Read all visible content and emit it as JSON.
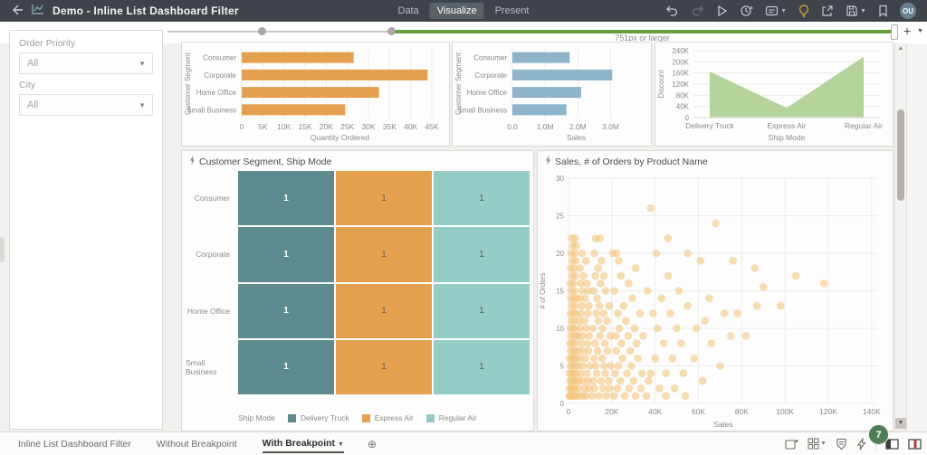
{
  "topbar": {
    "title": "Demo - Inline List Dashboard Filter",
    "tabs": [
      {
        "label": "Data",
        "active": false
      },
      {
        "label": "Visualize",
        "active": true
      },
      {
        "label": "Present",
        "active": false
      }
    ],
    "action_icon_names": [
      "undo-icon",
      "redo-icon",
      "preview-icon",
      "schedule-icon",
      "comments-icon",
      "auto-insights-icon",
      "export-icon",
      "save-icon",
      "bookmark-icon"
    ],
    "avatar_initials": "OU"
  },
  "breakpoint_bar": {
    "label": "751px or larger",
    "add_button": "+"
  },
  "filter_panel": {
    "fields": [
      {
        "label": "Order Priority",
        "value": "All"
      },
      {
        "label": "City",
        "value": "All"
      }
    ]
  },
  "chart_data": [
    {
      "type": "bar",
      "orientation": "horizontal",
      "categories": [
        "Consumer",
        "Corporate",
        "Home Office",
        "Small Business"
      ],
      "values": [
        26500,
        44000,
        32500,
        24500
      ],
      "xlabel": "Quantity Ordered",
      "ylabel": "Customer Segment",
      "xlim": [
        0,
        46500
      ],
      "xtick_values": [
        0,
        5000,
        10000,
        15000,
        20000,
        25000,
        30000,
        35000,
        40000,
        45000
      ],
      "xtick_labels": [
        "0",
        "5K",
        "10K",
        "15K",
        "20K",
        "25K",
        "30K",
        "35K",
        "40K",
        "45K"
      ],
      "grid": true,
      "color": "#e4a04f"
    },
    {
      "type": "bar",
      "orientation": "horizontal",
      "categories": [
        "Consumer",
        "Corporate",
        "Home Office",
        "Small Business"
      ],
      "values": [
        1750000,
        3050000,
        2100000,
        1650000
      ],
      "xlabel": "Sales",
      "ylabel": "Customer Segment",
      "xlim": [
        0,
        3900000
      ],
      "xtick_values": [
        0,
        1000000,
        2000000,
        3000000
      ],
      "xtick_labels": [
        "0.0",
        "1.0M",
        "2.0M",
        "3.0M"
      ],
      "grid": true,
      "color": "#8db4c9"
    },
    {
      "type": "area",
      "categories": [
        "Delivery Truck",
        "Express Air",
        "Regular Air"
      ],
      "values": [
        165000,
        35000,
        218000
      ],
      "xlabel": "Ship Mode",
      "ylabel": "Discount",
      "ylim": [
        0,
        240000
      ],
      "ytick_values": [
        0,
        40000,
        80000,
        120000,
        160000,
        200000,
        240000
      ],
      "ytick_labels": [
        "0",
        "40K",
        "80K",
        "120K",
        "160K",
        "200K",
        "240K"
      ],
      "grid": true,
      "color": "#b5d49b"
    },
    {
      "type": "heatmap",
      "title": "Customer Segment, Ship Mode",
      "rows": [
        "Consumer",
        "Corporate",
        "Home Office",
        "Small Business"
      ],
      "columns": [
        "Delivery Truck",
        "Express Air",
        "Regular Air"
      ],
      "values": [
        [
          1,
          1,
          1
        ],
        [
          1,
          1,
          1
        ],
        [
          1,
          1,
          1
        ],
        [
          1,
          1,
          1
        ]
      ],
      "column_colors": [
        "#5e8b8f",
        "#e4a04f",
        "#93cdc6"
      ],
      "legend_title": "Ship Mode",
      "legend_position": "bottom"
    },
    {
      "type": "scatter",
      "title": "Sales, # of Orders by Product Name",
      "xlabel": "Sales",
      "ylabel": "# of Orders",
      "xlim": [
        0,
        143000
      ],
      "ylim": [
        0,
        30
      ],
      "xtick_values": [
        0,
        20000,
        40000,
        60000,
        80000,
        100000,
        120000,
        140000
      ],
      "xtick_labels": [
        "0",
        "20K",
        "40K",
        "60K",
        "80K",
        "100K",
        "120K",
        "140K"
      ],
      "ytick_values": [
        0,
        5,
        10,
        15,
        20,
        25,
        30
      ],
      "grid": true,
      "color": "#f3c57e",
      "x_scale": 1000,
      "points": [
        [
          0.4,
          1
        ],
        [
          0.8,
          1
        ],
        [
          1.5,
          1
        ],
        [
          2.5,
          1
        ],
        [
          3.5,
          1
        ],
        [
          5,
          1
        ],
        [
          6.5,
          1
        ],
        [
          8,
          1
        ],
        [
          11,
          1
        ],
        [
          14,
          1
        ],
        [
          17.5,
          1
        ],
        [
          21,
          1
        ],
        [
          26,
          1
        ],
        [
          31,
          1
        ],
        [
          36,
          1
        ],
        [
          45,
          1
        ],
        [
          54,
          1
        ],
        [
          0.5,
          2
        ],
        [
          1.2,
          2
        ],
        [
          2,
          2
        ],
        [
          3,
          2
        ],
        [
          4.5,
          2
        ],
        [
          7.5,
          2
        ],
        [
          9.5,
          2
        ],
        [
          12,
          2
        ],
        [
          16,
          2
        ],
        [
          19,
          2
        ],
        [
          22.5,
          2
        ],
        [
          28,
          2
        ],
        [
          33.5,
          2
        ],
        [
          42,
          2
        ],
        [
          49,
          2
        ],
        [
          0.7,
          3
        ],
        [
          1.6,
          3
        ],
        [
          2.8,
          3
        ],
        [
          3.8,
          3
        ],
        [
          4.8,
          3
        ],
        [
          6.8,
          3
        ],
        [
          9,
          3
        ],
        [
          11.5,
          3
        ],
        [
          15,
          3
        ],
        [
          18.5,
          3
        ],
        [
          24,
          3
        ],
        [
          30,
          3
        ],
        [
          37,
          3
        ],
        [
          62,
          3
        ],
        [
          0.5,
          4
        ],
        [
          1.3,
          4
        ],
        [
          2.3,
          4
        ],
        [
          3.4,
          4
        ],
        [
          5.5,
          4
        ],
        [
          8.5,
          4
        ],
        [
          13,
          4
        ],
        [
          17,
          4
        ],
        [
          21.5,
          4
        ],
        [
          27,
          4
        ],
        [
          34,
          4
        ],
        [
          38,
          4
        ],
        [
          45,
          4
        ],
        [
          53,
          4
        ],
        [
          0.9,
          5
        ],
        [
          1.8,
          5
        ],
        [
          3,
          5
        ],
        [
          4.4,
          5
        ],
        [
          6.5,
          5
        ],
        [
          9.8,
          5
        ],
        [
          12.5,
          5
        ],
        [
          16.5,
          5
        ],
        [
          19.5,
          5
        ],
        [
          23,
          5
        ],
        [
          29,
          5
        ],
        [
          70,
          5
        ],
        [
          0.6,
          6
        ],
        [
          1.4,
          6
        ],
        [
          2.6,
          6
        ],
        [
          3.7,
          6
        ],
        [
          5.2,
          6
        ],
        [
          7.8,
          6
        ],
        [
          11.8,
          6
        ],
        [
          15.5,
          6
        ],
        [
          25,
          6
        ],
        [
          32,
          6
        ],
        [
          40,
          6
        ],
        [
          48,
          6
        ],
        [
          58,
          6
        ],
        [
          1,
          7
        ],
        [
          2.1,
          7
        ],
        [
          3.2,
          7
        ],
        [
          4.7,
          7
        ],
        [
          7,
          7
        ],
        [
          9.3,
          7
        ],
        [
          13.5,
          7
        ],
        [
          18,
          7
        ],
        [
          22,
          7
        ],
        [
          28.5,
          7
        ],
        [
          0.7,
          8
        ],
        [
          1.7,
          8
        ],
        [
          2.9,
          8
        ],
        [
          5.8,
          8
        ],
        [
          8.8,
          8
        ],
        [
          12.2,
          8
        ],
        [
          16.8,
          8
        ],
        [
          24.5,
          8
        ],
        [
          31.5,
          8
        ],
        [
          44,
          8
        ],
        [
          52,
          8
        ],
        [
          66,
          8
        ],
        [
          1.1,
          9
        ],
        [
          2.4,
          9
        ],
        [
          3.6,
          9
        ],
        [
          4.5,
          9
        ],
        [
          6.7,
          9
        ],
        [
          9.6,
          9
        ],
        [
          14.5,
          9
        ],
        [
          19.2,
          9
        ],
        [
          21.8,
          9
        ],
        [
          27.5,
          9
        ],
        [
          34.5,
          9
        ],
        [
          75,
          9
        ],
        [
          82,
          9
        ],
        [
          0.8,
          10
        ],
        [
          1.9,
          10
        ],
        [
          3.1,
          10
        ],
        [
          5.4,
          10
        ],
        [
          8.2,
          10
        ],
        [
          11.3,
          10
        ],
        [
          15.8,
          10
        ],
        [
          23.5,
          10
        ],
        [
          30.5,
          10
        ],
        [
          41,
          10
        ],
        [
          50,
          10
        ],
        [
          59,
          10
        ],
        [
          1.3,
          11
        ],
        [
          2.7,
          11
        ],
        [
          4.9,
          11
        ],
        [
          7.4,
          11
        ],
        [
          13.8,
          11
        ],
        [
          17.8,
          11
        ],
        [
          26.5,
          11
        ],
        [
          63,
          11
        ],
        [
          0.9,
          12
        ],
        [
          2.2,
          12
        ],
        [
          3.4,
          12
        ],
        [
          5.6,
          12
        ],
        [
          8.9,
          12
        ],
        [
          12.8,
          12
        ],
        [
          16.2,
          12
        ],
        [
          22.8,
          12
        ],
        [
          33,
          12
        ],
        [
          39,
          12
        ],
        [
          47,
          12
        ],
        [
          72,
          12
        ],
        [
          78,
          12
        ],
        [
          1.5,
          13
        ],
        [
          2.9,
          13
        ],
        [
          6.2,
          13
        ],
        [
          9.4,
          13
        ],
        [
          14.2,
          13
        ],
        [
          18.8,
          13
        ],
        [
          25.5,
          13
        ],
        [
          55,
          13
        ],
        [
          87,
          13
        ],
        [
          98,
          13
        ],
        [
          1,
          14
        ],
        [
          2.5,
          14
        ],
        [
          3.7,
          14
        ],
        [
          5.1,
          14
        ],
        [
          7.7,
          14
        ],
        [
          13.2,
          14
        ],
        [
          29.5,
          14
        ],
        [
          43,
          14
        ],
        [
          65,
          14
        ],
        [
          1.2,
          15
        ],
        [
          2.8,
          15
        ],
        [
          6.4,
          15
        ],
        [
          9.1,
          15
        ],
        [
          11.6,
          15
        ],
        [
          17.2,
          15
        ],
        [
          21.2,
          15
        ],
        [
          36.5,
          15
        ],
        [
          51,
          15
        ],
        [
          90,
          15.5
        ],
        [
          0.9,
          16
        ],
        [
          2.3,
          16
        ],
        [
          5.7,
          16
        ],
        [
          8.4,
          16
        ],
        [
          14.8,
          16
        ],
        [
          27.8,
          16
        ],
        [
          118,
          16
        ],
        [
          1.6,
          17
        ],
        [
          3.2,
          17
        ],
        [
          6.9,
          17
        ],
        [
          12.4,
          17
        ],
        [
          16.4,
          17
        ],
        [
          24.2,
          17
        ],
        [
          46,
          17
        ],
        [
          105,
          17
        ],
        [
          1.1,
          18
        ],
        [
          2.6,
          18
        ],
        [
          5.3,
          18
        ],
        [
          13.6,
          18
        ],
        [
          31,
          18
        ],
        [
          86,
          18
        ],
        [
          1.8,
          19
        ],
        [
          3.4,
          19
        ],
        [
          8,
          19
        ],
        [
          15.2,
          19
        ],
        [
          23.2,
          19
        ],
        [
          61,
          19
        ],
        [
          76,
          19
        ],
        [
          1.3,
          20
        ],
        [
          2.9,
          20
        ],
        [
          6.1,
          20
        ],
        [
          12,
          20
        ],
        [
          20.5,
          20
        ],
        [
          22.2,
          20
        ],
        [
          40.5,
          20
        ],
        [
          55,
          20
        ],
        [
          2,
          21
        ],
        [
          3.6,
          21
        ],
        [
          1.5,
          22
        ],
        [
          3,
          22
        ],
        [
          12.5,
          22
        ],
        [
          14.5,
          22
        ],
        [
          46,
          22
        ],
        [
          68,
          24
        ],
        [
          38,
          26
        ]
      ]
    }
  ],
  "status_bar": {
    "tabs": [
      {
        "label": "Inline List Dashboard Filter",
        "active": false
      },
      {
        "label": "Without Breakpoint",
        "active": false
      },
      {
        "label": "With Breakpoint",
        "active": true
      }
    ],
    "add_canvas": "+",
    "icon_names": [
      "chart-add-icon",
      "layout-grid-icon",
      "data-actions-icon",
      "quick-insights-icon",
      "left-panel-toggle-icon",
      "right-panel-toggle-icon"
    ],
    "badge_count": "7"
  },
  "colors": {
    "topbar_bg": "#3e444a",
    "breakpoint_green": "#63a03c",
    "badge_green": "#4f7d54",
    "bar_orange": "#e4a04f",
    "bar_blue": "#8db4c9",
    "area_green": "#b5d49b",
    "heat_dark_teal": "#5e8b8f",
    "heat_light_teal": "#93cdc6",
    "scatter_tan": "#f3c57e"
  }
}
